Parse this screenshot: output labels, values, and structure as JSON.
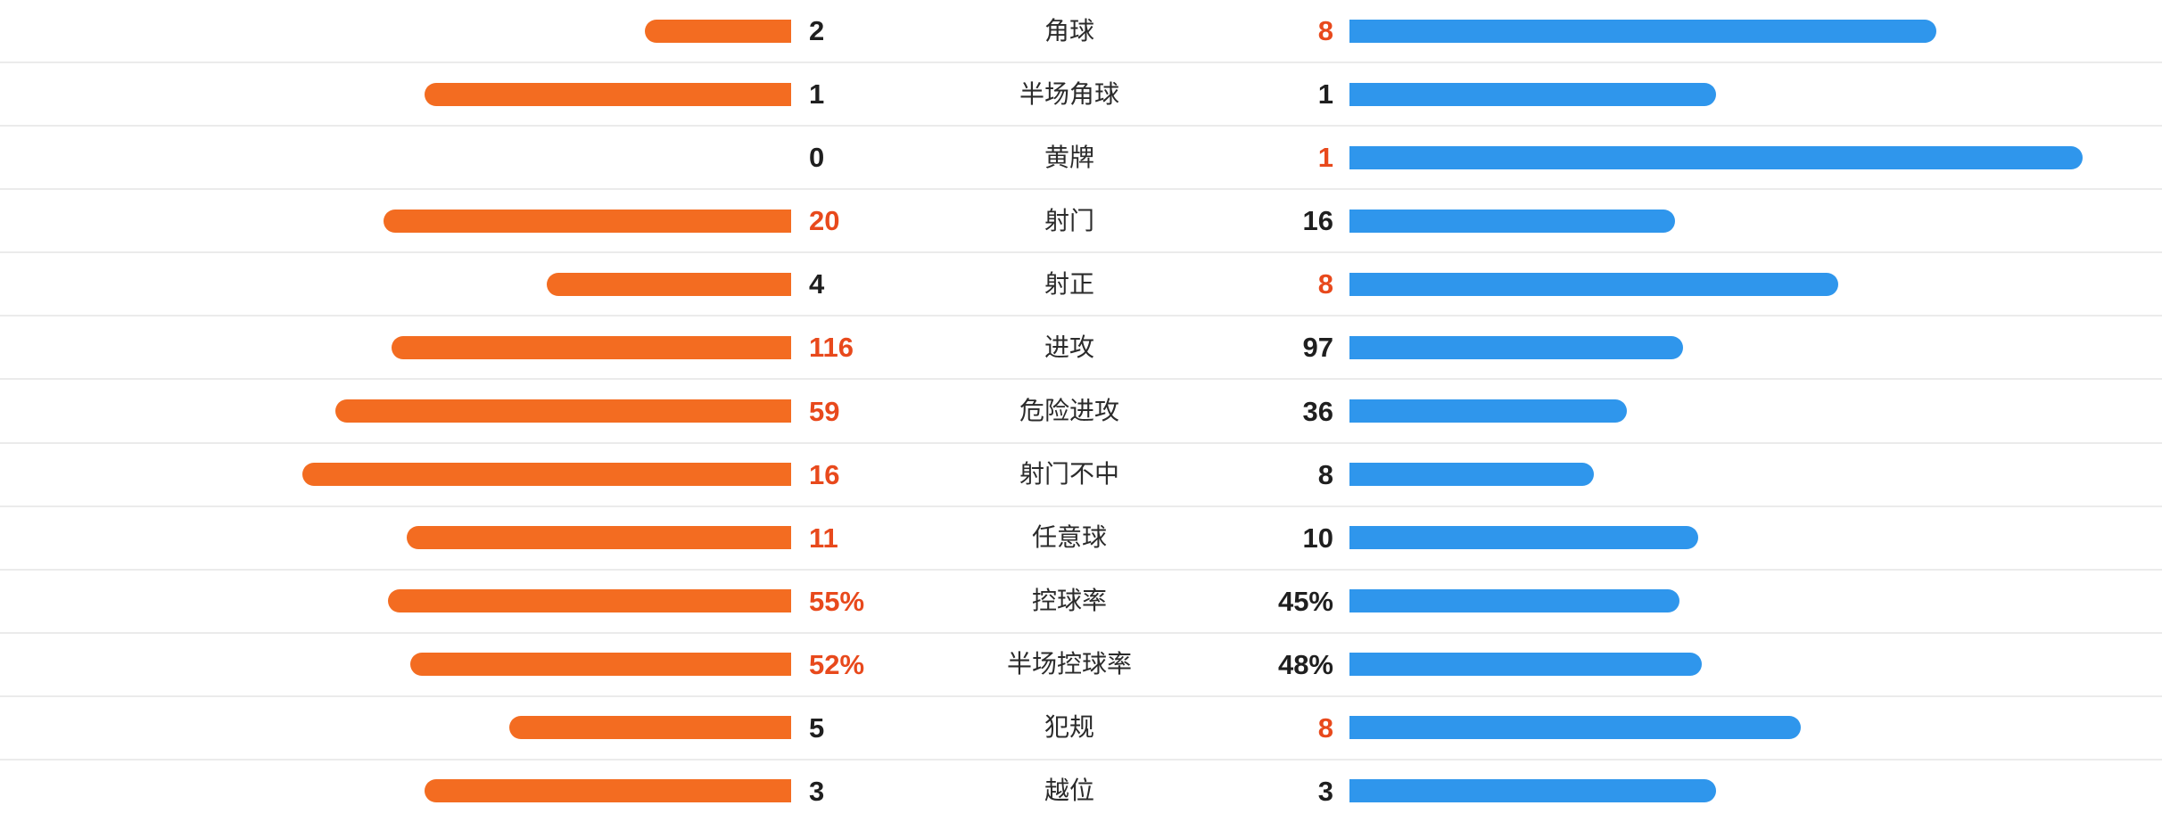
{
  "colors": {
    "home_bar": "#f36c21",
    "away_bar": "#2f96ec",
    "highlight_value": "#e8491c",
    "normal_value": "#1f1f1f",
    "label_text": "#2b2b2b",
    "row_divider": "#ebebeb",
    "background": "#ffffff"
  },
  "chart_data": {
    "type": "bar",
    "variant": "mirrored-horizontal-comparison",
    "legend_position": "none",
    "grid": "row-dividers-only",
    "categories": [
      "角球",
      "半场角球",
      "黄牌",
      "射门",
      "射正",
      "进攻",
      "危险进攻",
      "射门不中",
      "任意球",
      "控球率",
      "半场控球率",
      "犯规",
      "越位"
    ],
    "series": [
      {
        "name": "home-orange",
        "values": [
          2,
          1,
          0,
          20,
          4,
          116,
          59,
          16,
          11,
          55,
          52,
          5,
          3
        ]
      },
      {
        "name": "away-blue",
        "values": [
          8,
          1,
          1,
          16,
          8,
          97,
          36,
          8,
          10,
          45,
          48,
          8,
          3
        ]
      }
    ],
    "bar_rule": "bar length proportional to value / (home + away) of its row",
    "rows": [
      {
        "label": "角球",
        "home": {
          "display": "2",
          "value": 2,
          "highlight": false
        },
        "away": {
          "display": "8",
          "value": 8,
          "highlight": true
        }
      },
      {
        "label": "半场角球",
        "home": {
          "display": "1",
          "value": 1,
          "highlight": false
        },
        "away": {
          "display": "1",
          "value": 1,
          "highlight": false
        }
      },
      {
        "label": "黄牌",
        "home": {
          "display": "0",
          "value": 0,
          "highlight": false
        },
        "away": {
          "display": "1",
          "value": 1,
          "highlight": true
        }
      },
      {
        "label": "射门",
        "home": {
          "display": "20",
          "value": 20,
          "highlight": true
        },
        "away": {
          "display": "16",
          "value": 16,
          "highlight": false
        }
      },
      {
        "label": "射正",
        "home": {
          "display": "4",
          "value": 4,
          "highlight": false
        },
        "away": {
          "display": "8",
          "value": 8,
          "highlight": true
        }
      },
      {
        "label": "进攻",
        "home": {
          "display": "116",
          "value": 116,
          "highlight": true
        },
        "away": {
          "display": "97",
          "value": 97,
          "highlight": false
        }
      },
      {
        "label": "危险进攻",
        "home": {
          "display": "59",
          "value": 59,
          "highlight": true
        },
        "away": {
          "display": "36",
          "value": 36,
          "highlight": false
        }
      },
      {
        "label": "射门不中",
        "home": {
          "display": "16",
          "value": 16,
          "highlight": true
        },
        "away": {
          "display": "8",
          "value": 8,
          "highlight": false
        }
      },
      {
        "label": "任意球",
        "home": {
          "display": "11",
          "value": 11,
          "highlight": true
        },
        "away": {
          "display": "10",
          "value": 10,
          "highlight": false
        }
      },
      {
        "label": "控球率",
        "home": {
          "display": "55%",
          "value": 55,
          "highlight": true
        },
        "away": {
          "display": "45%",
          "value": 45,
          "highlight": false
        }
      },
      {
        "label": "半场控球率",
        "home": {
          "display": "52%",
          "value": 52,
          "highlight": true
        },
        "away": {
          "display": "48%",
          "value": 48,
          "highlight": false
        }
      },
      {
        "label": "犯规",
        "home": {
          "display": "5",
          "value": 5,
          "highlight": false
        },
        "away": {
          "display": "8",
          "value": 8,
          "highlight": true
        }
      },
      {
        "label": "越位",
        "home": {
          "display": "3",
          "value": 3,
          "highlight": false
        },
        "away": {
          "display": "3",
          "value": 3,
          "highlight": false
        }
      }
    ]
  }
}
